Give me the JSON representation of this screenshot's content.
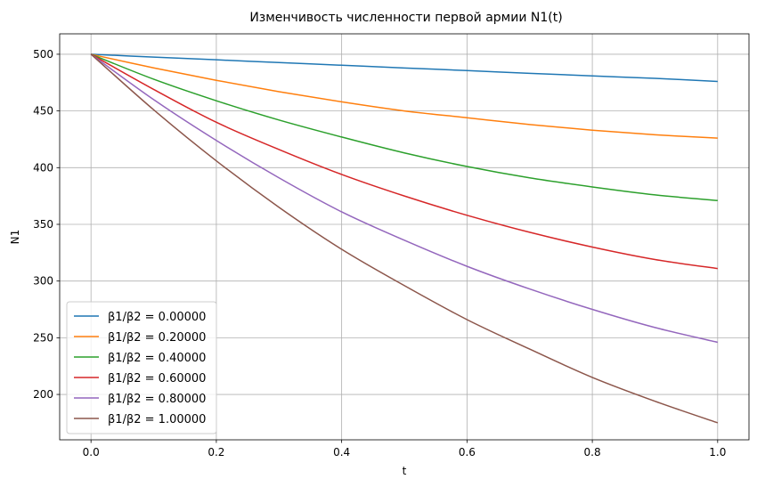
{
  "chart_data": {
    "type": "line",
    "title": "Изменчивость численности первой армии N1(t)",
    "xlabel": "t",
    "ylabel": "N1",
    "xlim": [
      -0.05,
      1.05
    ],
    "ylim": [
      160,
      518
    ],
    "xticks": [
      "0.0",
      "0.2",
      "0.4",
      "0.6",
      "0.8",
      "1.0"
    ],
    "yticks": [
      "200",
      "250",
      "300",
      "350",
      "400",
      "450",
      "500"
    ],
    "grid": true,
    "legend_position": "lower-left",
    "x": [
      0.0,
      0.1,
      0.2,
      0.3,
      0.4,
      0.5,
      0.6,
      0.7,
      0.8,
      0.9,
      1.0
    ],
    "series": [
      {
        "name": "β1/β2 = 0.00000",
        "color": "#1f77b4",
        "values": [
          500,
          497.5,
          495.1,
          492.7,
          490.3,
          487.9,
          485.6,
          483.2,
          480.9,
          478.7,
          476
        ]
      },
      {
        "name": "β1/β2 = 0.20000",
        "color": "#ff7f0e",
        "values": [
          500,
          488,
          477,
          467,
          458,
          450,
          444,
          438,
          433,
          429,
          426
        ]
      },
      {
        "name": "β1/β2 = 0.40000",
        "color": "#2ca02c",
        "values": [
          500,
          478,
          459,
          442,
          427,
          413,
          401,
          391,
          383,
          376,
          371
        ]
      },
      {
        "name": "β1/β2 = 0.60000",
        "color": "#d62728",
        "values": [
          500,
          469,
          440,
          416,
          394,
          375,
          358,
          343,
          330,
          319,
          311
        ]
      },
      {
        "name": "β1/β2 = 0.80000",
        "color": "#9467bd",
        "values": [
          500,
          460,
          424,
          391,
          361,
          336,
          313,
          293,
          275,
          259,
          246
        ]
      },
      {
        "name": "β1/β2 = 1.00000",
        "color": "#8c564b",
        "values": [
          500,
          451,
          406,
          365,
          328,
          296,
          266,
          240,
          215,
          194,
          175
        ]
      }
    ]
  }
}
